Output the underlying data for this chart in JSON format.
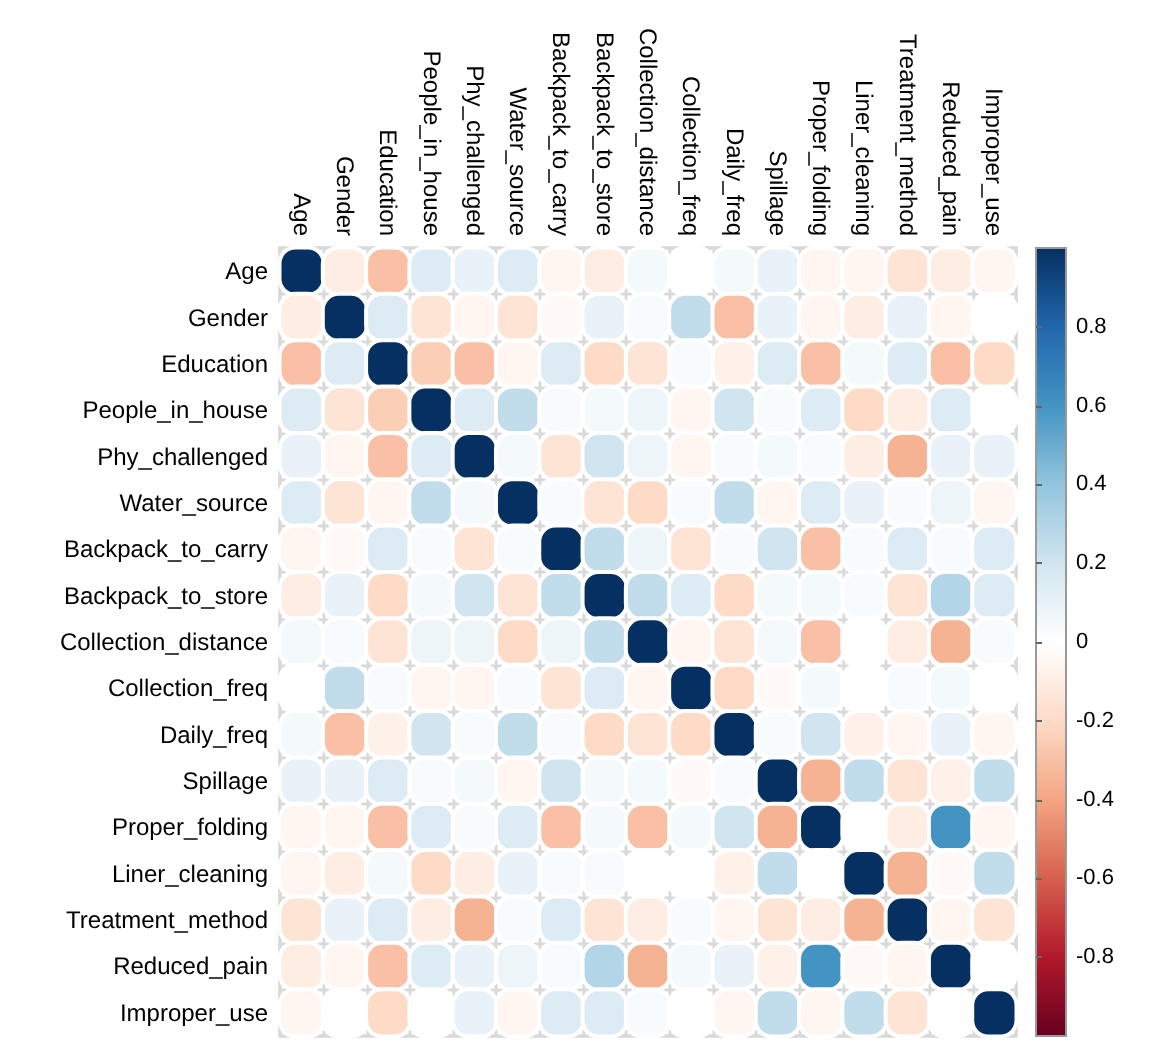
{
  "chart_data": {
    "type": "heatmap",
    "categories": [
      "Age",
      "Gender",
      "Education",
      "People_in_house",
      "Phy_challenged",
      "Water_source",
      "Backpack_to_carry",
      "Backpack_to_store",
      "Collection_distance",
      "Collection_freq",
      "Daily_freq",
      "Spillage",
      "Proper_folding",
      "Liner_cleaning",
      "Treatment_method",
      "Reduced_pain",
      "Improper_use"
    ],
    "y_categories": [
      "Age",
      "Gender",
      "Education",
      "People_in_house",
      "Phy_challenged",
      "Water_source",
      "Backpack_to_carry",
      "Backpack_to_store",
      "Collection_distance",
      "Collection_freq",
      "Daily_freq",
      "Spillage",
      "Proper_folding",
      "Liner_cleaning",
      "Treatment_method",
      "Reduced_pain",
      "Improper_use"
    ],
    "cells": [
      [
        1,
        -0.1,
        -0.3,
        0.15,
        0.1,
        0.15,
        -0.05,
        -0.1,
        0.05,
        0,
        0.05,
        0.1,
        -0.05,
        -0.05,
        -0.15,
        -0.1,
        -0.05
      ],
      [
        -0.1,
        1,
        0.15,
        -0.15,
        -0.05,
        -0.15,
        -0.03,
        0.1,
        0.03,
        0.25,
        -0.3,
        0.1,
        -0.05,
        -0.1,
        0.1,
        -0.05,
        0
      ],
      [
        -0.3,
        0.15,
        1,
        -0.25,
        -0.3,
        -0.05,
        0.15,
        -0.2,
        -0.15,
        0.03,
        -0.08,
        0.15,
        -0.3,
        0.05,
        0.15,
        -0.3,
        -0.2
      ],
      [
        0.15,
        -0.15,
        -0.25,
        1,
        0.15,
        0.25,
        0.03,
        0.05,
        0.08,
        -0.05,
        0.2,
        0.03,
        0.15,
        -0.2,
        -0.1,
        0.15,
        0
      ],
      [
        0.1,
        -0.05,
        -0.3,
        0.15,
        1,
        0.05,
        -0.15,
        0.2,
        0.08,
        -0.05,
        0.03,
        0.05,
        0.03,
        -0.1,
        -0.35,
        0.1,
        0.1
      ],
      [
        0.15,
        -0.15,
        -0.05,
        0.25,
        0.05,
        1,
        0.03,
        -0.15,
        -0.2,
        0.03,
        0.25,
        -0.05,
        0.15,
        0.1,
        0.03,
        0.08,
        -0.05
      ],
      [
        -0.05,
        -0.03,
        0.15,
        0.03,
        -0.15,
        0.03,
        1,
        0.25,
        0.08,
        -0.15,
        0.03,
        0.2,
        -0.3,
        0.03,
        0.15,
        0.03,
        0.15
      ],
      [
        -0.1,
        0.1,
        -0.2,
        0.05,
        0.2,
        -0.15,
        0.25,
        1,
        0.25,
        0.15,
        -0.2,
        0.05,
        0.05,
        0.03,
        -0.15,
        0.3,
        0.15
      ],
      [
        0.05,
        0.03,
        -0.15,
        0.08,
        0.08,
        -0.2,
        0.08,
        0.25,
        1,
        -0.05,
        -0.15,
        0.05,
        -0.3,
        0,
        -0.1,
        -0.35,
        0.03
      ],
      [
        0,
        0.25,
        0.03,
        -0.05,
        -0.05,
        0.03,
        -0.15,
        0.15,
        -0.05,
        1,
        -0.2,
        -0.03,
        0.05,
        0,
        0.03,
        0.05,
        0
      ],
      [
        0.05,
        -0.3,
        -0.08,
        0.2,
        0.03,
        0.25,
        0.03,
        -0.2,
        -0.15,
        -0.2,
        1,
        0.03,
        0.2,
        -0.08,
        -0.05,
        0.1,
        -0.05
      ],
      [
        0.1,
        0.1,
        0.15,
        0.03,
        0.05,
        -0.05,
        0.2,
        0.05,
        0.05,
        -0.03,
        0.03,
        1,
        -0.35,
        0.25,
        -0.15,
        -0.08,
        0.25
      ],
      [
        -0.05,
        -0.05,
        -0.3,
        0.15,
        0.03,
        0.15,
        -0.3,
        0.05,
        -0.3,
        0.05,
        0.2,
        -0.35,
        1,
        0,
        -0.1,
        0.6,
        -0.05
      ],
      [
        -0.05,
        -0.1,
        0.05,
        -0.2,
        -0.1,
        0.1,
        0.03,
        0.03,
        0,
        0,
        -0.08,
        0.25,
        0,
        1,
        -0.35,
        -0.03,
        0.25
      ],
      [
        -0.15,
        0.1,
        0.15,
        -0.1,
        -0.35,
        0.03,
        0.15,
        -0.15,
        -0.1,
        0.03,
        -0.05,
        -0.15,
        -0.1,
        -0.35,
        1,
        -0.05,
        -0.15
      ],
      [
        -0.1,
        -0.05,
        -0.3,
        0.15,
        0.1,
        0.08,
        0.03,
        0.3,
        -0.35,
        0.05,
        0.1,
        -0.08,
        0.6,
        -0.03,
        -0.05,
        1,
        0
      ],
      [
        -0.05,
        0,
        -0.2,
        0,
        0.1,
        -0.05,
        0.15,
        0.15,
        0.03,
        0,
        -0.05,
        0.25,
        -0.05,
        0.25,
        -0.15,
        0,
        1
      ]
    ],
    "clim": [
      -1,
      1
    ],
    "cticks": [
      -0.8,
      -0.6,
      -0.4,
      -0.2,
      0,
      0.2,
      0.4,
      0.6,
      0.8
    ],
    "grid": true
  }
}
